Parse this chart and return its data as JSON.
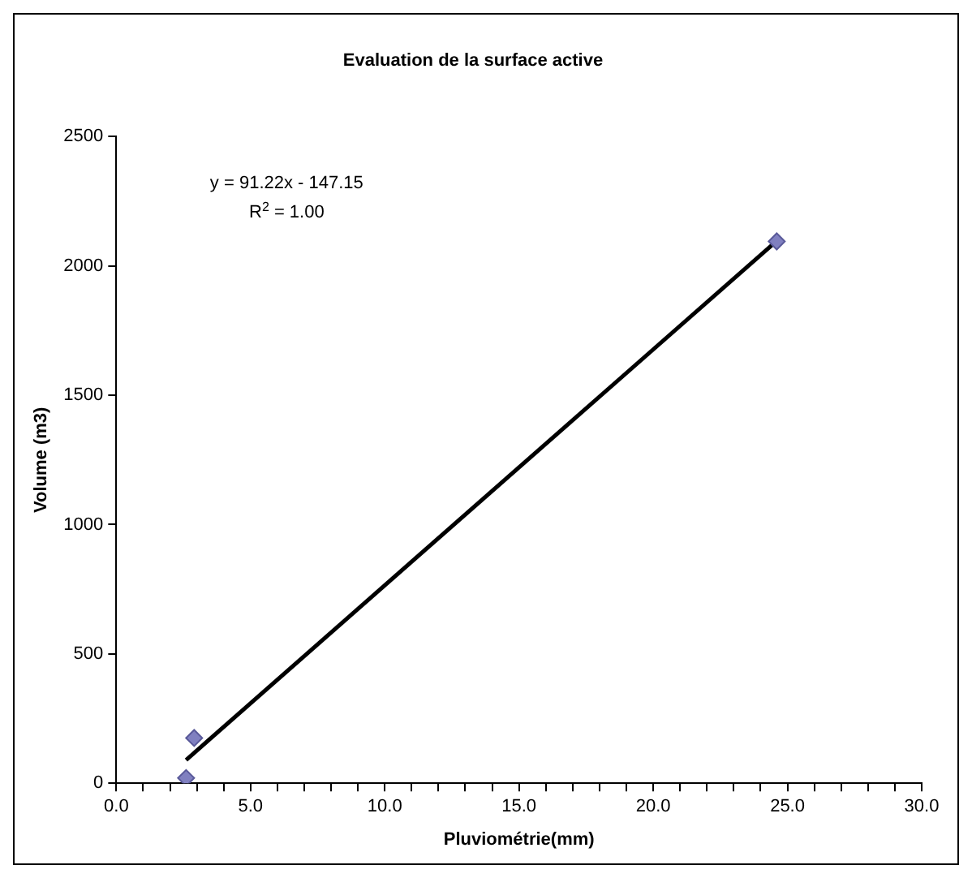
{
  "chart_data": {
    "type": "scatter",
    "title": "Evaluation de la surface active",
    "xlabel": "Pluviométrie(mm)",
    "ylabel": "Volume (m3)",
    "annotations": [
      "y = 91.22x - 147.15",
      "R$^{2}$ = 1.00"
    ],
    "series": [
      {
        "color": "#8080c0",
        "marker": "diamond",
        "x": [
          2.6,
          2.9,
          24.6
        ],
        "values": [
          20,
          175,
          2095
        ]
      },
      {
        "type": "line",
        "color": "#000000",
        "marker": "none",
        "line_style": "solid",
        "x": [
          2.6,
          24.6
        ],
        "values": [
          90,
          2097
        ]
      }
    ],
    "xlim": [
      0,
      30
    ],
    "ylim": [
      0,
      2500
    ],
    "xticks": [
      {
        "value": 0,
        "label": "0.0"
      },
      {
        "value": 1,
        "label": null
      },
      {
        "value": 2,
        "label": null
      },
      {
        "value": 3,
        "label": null
      },
      {
        "value": 4,
        "label": null
      },
      {
        "value": 5,
        "label": "5.0"
      },
      {
        "value": 6,
        "label": null
      },
      {
        "value": 7,
        "label": null
      },
      {
        "value": 8,
        "label": null
      },
      {
        "value": 9,
        "label": null
      },
      {
        "value": 10,
        "label": "10.0"
      },
      {
        "value": 11,
        "label": null
      },
      {
        "value": 12,
        "label": null
      },
      {
        "value": 13,
        "label": null
      },
      {
        "value": 14,
        "label": null
      },
      {
        "value": 15,
        "label": "15.0"
      },
      {
        "value": 16,
        "label": null
      },
      {
        "value": 17,
        "label": null
      },
      {
        "value": 18,
        "label": null
      },
      {
        "value": 19,
        "label": null
      },
      {
        "value": 20,
        "label": "20.0"
      },
      {
        "value": 21,
        "label": null
      },
      {
        "value": 22,
        "label": null
      },
      {
        "value": 23,
        "label": null
      },
      {
        "value": 24,
        "label": null
      },
      {
        "value": 25,
        "label": "25.0"
      },
      {
        "value": 26,
        "label": null
      },
      {
        "value": 27,
        "label": null
      },
      {
        "value": 28,
        "label": null
      },
      {
        "value": 29,
        "label": null
      },
      {
        "value": 30,
        "label": "30.0"
      }
    ],
    "yticks": [
      0,
      500,
      1000,
      1500,
      2000,
      2500
    ],
    "grid": false,
    "legend": false
  }
}
